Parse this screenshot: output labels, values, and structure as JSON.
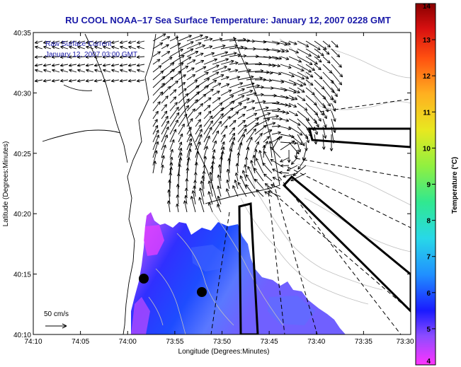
{
  "title": "RU COOL  NOAA–17  Sea Surface Temperature:  January 12, 2007 0228 GMT",
  "overlay": {
    "line1": "Raw Surface Current",
    "line2": "January 12, 2007 03:00 GMT"
  },
  "x_axis": {
    "label": "Longitude (Degrees:Minutes)",
    "ticks": [
      "74:10",
      "74:05",
      "74:00",
      "73:55",
      "73:50",
      "73:45",
      "73:40",
      "73:35",
      "73:30"
    ]
  },
  "y_axis": {
    "label": "Latitude (Degrees:Minutes)",
    "ticks": [
      "40:35",
      "40:30",
      "40:25",
      "40:20",
      "40:15",
      "40:10"
    ]
  },
  "scale": {
    "label": "50 cm/s"
  },
  "colorbar": {
    "label": "Temperature (°C)",
    "ticks": [
      "14",
      "13",
      "12",
      "11",
      "10",
      "9",
      "8",
      "7",
      "6",
      "5",
      "4"
    ],
    "min": 4,
    "max": 14,
    "stops": [
      "#ff33ff",
      "#8c4cff",
      "#1a1aff",
      "#2090ff",
      "#28d8e8",
      "#30e890",
      "#90f040",
      "#e8e820",
      "#ffb020",
      "#ff5010",
      "#d81010",
      "#880000"
    ]
  },
  "colors": {
    "title": "#1a1aa8",
    "land_contour": "#000000",
    "bathymetry": "#c0c0c0"
  }
}
